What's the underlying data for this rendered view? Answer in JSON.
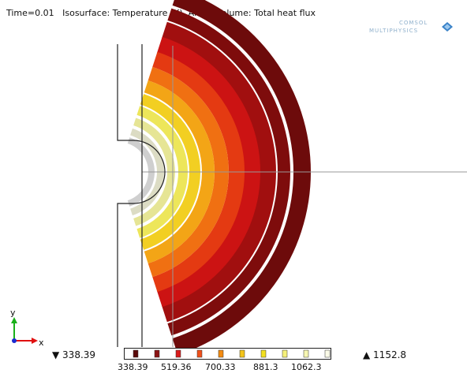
{
  "plot": {
    "title": "Time=0.01   Isosurface: Temperature (K)  Arrow Volume: Total heat flux"
  },
  "logo": {
    "line1": "COMSOL",
    "line2": "MULTIPHYSICS"
  },
  "axes": {
    "x_label": "x",
    "y_label": "y",
    "colors": {
      "x": "#e01010",
      "y": "#19b019",
      "z": "#1a2bd0"
    }
  },
  "colorbar": {
    "min_label": "▼ 338.39",
    "max_label": "▲ 1152.8",
    "ticks": [
      "338.39",
      "519.36",
      "700.33",
      "881.3",
      "1062.3"
    ],
    "colors": [
      "#5a0a0a",
      "#8c1414",
      "#d81a1a",
      "#f0501a",
      "#f28a10",
      "#f3c41a",
      "#f3e01f",
      "#f5f07a",
      "#f6f6b2",
      "#fbfbe8"
    ]
  },
  "scene": {
    "shell_colors": [
      "#6d0b0b",
      "#7e0c0c",
      "#a10f0f",
      "#cc1313",
      "#e43a12",
      "#f07012",
      "#f3a516",
      "#f2cf22",
      "#ede65a",
      "#e6e595",
      "#dcdcc4",
      "#cfcfcf"
    ]
  }
}
